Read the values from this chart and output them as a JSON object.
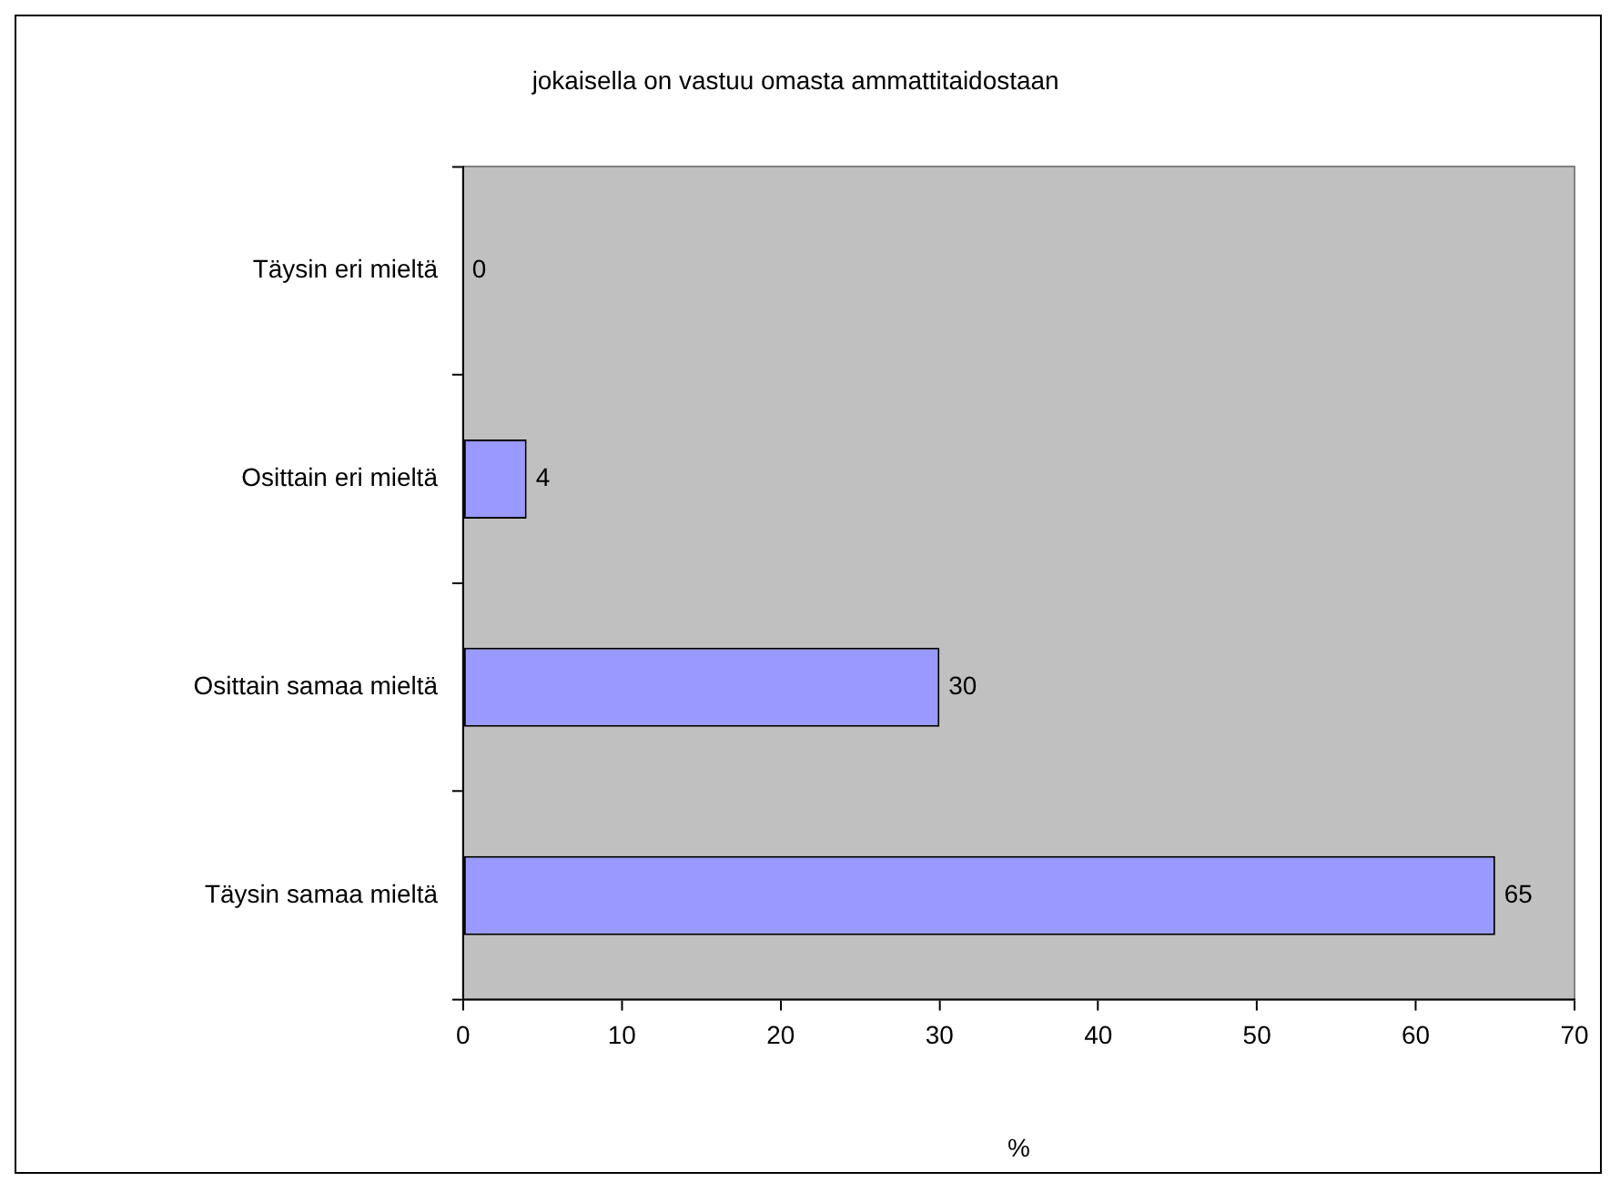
{
  "chart_data": {
    "type": "bar",
    "orientation": "horizontal",
    "title": "jokaisella on vastuu omasta ammattitaidostaan",
    "xlabel": "%",
    "categories": [
      "Täysin eri mieltä",
      "Osittain eri mieltä",
      "Osittain samaa mieltä",
      "Täysin samaa mieltä"
    ],
    "values": [
      0,
      4,
      30,
      65
    ],
    "color": "#9999ff",
    "xlim": [
      0,
      70
    ],
    "xticks": [
      0,
      10,
      20,
      30,
      40,
      50,
      60,
      70
    ],
    "grid": false,
    "legend": false,
    "data_labels": true
  }
}
